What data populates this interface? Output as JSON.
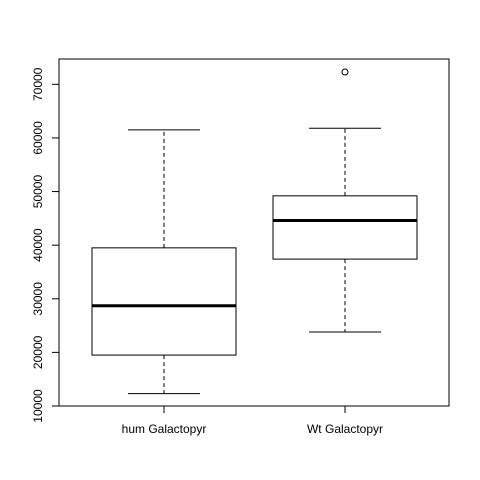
{
  "chart_data": {
    "type": "boxplot",
    "title": "",
    "xlabel": "",
    "ylabel": "",
    "categories": [
      "hum Galactopyr",
      "Wt Galactopyr"
    ],
    "boxes": [
      {
        "name": "hum Galactopyr",
        "whisker_low": 12300,
        "q1": 19500,
        "median": 28700,
        "q3": 39500,
        "whisker_high": 61500,
        "outliers": []
      },
      {
        "name": "Wt Galactopyr",
        "whisker_low": 23800,
        "q1": 37400,
        "median": 44600,
        "q3": 49200,
        "whisker_high": 61800,
        "outliers": [
          72300
        ]
      }
    ],
    "ylim": [
      10000,
      72300
    ],
    "yticks": [
      10000,
      20000,
      30000,
      40000,
      50000,
      60000,
      70000
    ],
    "ytick_labels": [
      "10000",
      "20000",
      "30000",
      "40000",
      "50000",
      "60000",
      "70000"
    ],
    "grid": false,
    "colors": {
      "box_fill": "#ffffff",
      "line": "#000000"
    }
  }
}
